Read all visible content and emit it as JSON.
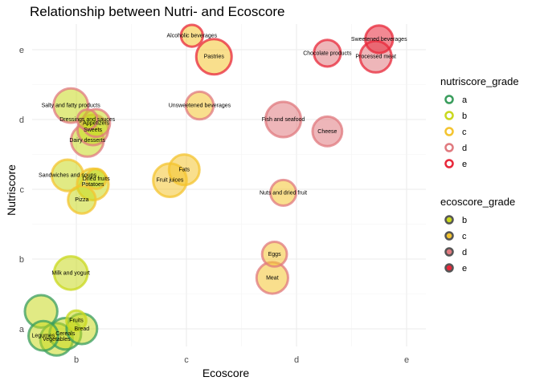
{
  "chart_data": {
    "type": "scatter",
    "title": "Relationship between Nutri- and Ecoscore",
    "xlabel": "Ecoscore",
    "ylabel": "Nutriscore",
    "x_categories": [
      "b",
      "c",
      "d",
      "e"
    ],
    "y_categories": [
      "a",
      "b",
      "c",
      "d",
      "e"
    ],
    "grid": true,
    "legend_position": "right",
    "legends": [
      {
        "title": "nutriscore_grade",
        "entries": [
          {
            "label": "a",
            "color": "#3a9d5d"
          },
          {
            "label": "b",
            "color": "#c9d81f"
          },
          {
            "label": "c",
            "color": "#f4c430"
          },
          {
            "label": "d",
            "color": "#e07a7f"
          },
          {
            "label": "e",
            "color": "#e8283a"
          }
        ]
      },
      {
        "title": "ecoscore_grade",
        "entries": [
          {
            "label": "b",
            "color": "#c9d81f"
          },
          {
            "label": "c",
            "color": "#f4c430"
          },
          {
            "label": "d",
            "color": "#e07a7f"
          },
          {
            "label": "e",
            "color": "#e8283a"
          }
        ]
      }
    ],
    "points": [
      {
        "label": "Alcoholic beverages",
        "x": 2.05,
        "y": 5.2,
        "nutri": "e",
        "eco": "c",
        "size": 0.3
      },
      {
        "label": "Pastries",
        "x": 2.25,
        "y": 4.9,
        "nutri": "e",
        "eco": "c",
        "size": 1.0
      },
      {
        "label": "Chocolate products",
        "x": 3.28,
        "y": 4.95,
        "nutri": "e",
        "eco": "d",
        "size": 0.55
      },
      {
        "label": "Sweetened beverages",
        "x": 3.75,
        "y": 5.15,
        "nutri": "e",
        "eco": "e",
        "size": 0.6
      },
      {
        "label": "Processed meat",
        "x": 3.72,
        "y": 4.9,
        "nutri": "e",
        "eco": "d",
        "size": 0.8
      },
      {
        "label": "Dressings and sauces",
        "x": 1.1,
        "y": 4.0,
        "nutri": "d",
        "eco": "b",
        "size": 0.2
      },
      {
        "label": "Salty and fatty products",
        "x": 0.95,
        "y": 4.2,
        "nutri": "d",
        "eco": "b",
        "size": 0.95
      },
      {
        "label": "Appetizers",
        "x": 1.18,
        "y": 3.95,
        "nutri": "d",
        "eco": "b",
        "size": 0.6
      },
      {
        "label": "Sweets",
        "x": 1.15,
        "y": 3.85,
        "nutri": "d",
        "eco": "b",
        "size": 0.75
      },
      {
        "label": "Dairy desserts",
        "x": 1.1,
        "y": 3.7,
        "nutri": "d",
        "eco": "b",
        "size": 0.85
      },
      {
        "label": "Unsweetened beverages",
        "x": 2.12,
        "y": 4.2,
        "nutri": "d",
        "eco": "c",
        "size": 0.6
      },
      {
        "label": "Fish and seafood",
        "x": 2.88,
        "y": 4.0,
        "nutri": "d",
        "eco": "d",
        "size": 1.0
      },
      {
        "label": "Cheese",
        "x": 3.28,
        "y": 3.83,
        "nutri": "d",
        "eco": "d",
        "size": 0.7
      },
      {
        "label": "Sandwiches and soups",
        "x": 0.92,
        "y": 3.2,
        "nutri": "c",
        "eco": "b",
        "size": 0.8
      },
      {
        "label": "Dried fruits",
        "x": 1.18,
        "y": 3.15,
        "nutri": "c",
        "eco": "b",
        "size": 0.2
      },
      {
        "label": "Potatoes",
        "x": 1.15,
        "y": 3.07,
        "nutri": "c",
        "eco": "b",
        "size": 0.8
      },
      {
        "label": "Pizza",
        "x": 1.05,
        "y": 2.85,
        "nutri": "c",
        "eco": "b",
        "size": 0.6
      },
      {
        "label": "Fats",
        "x": 1.98,
        "y": 3.28,
        "nutri": "c",
        "eco": "c",
        "size": 0.75
      },
      {
        "label": "Fruit juices",
        "x": 1.85,
        "y": 3.13,
        "nutri": "c",
        "eco": "c",
        "size": 0.9
      },
      {
        "label": "Nuts and dried fruit",
        "x": 2.88,
        "y": 2.95,
        "nutri": "d",
        "eco": "c",
        "size": 0.5
      },
      {
        "label": "Eggs",
        "x": 2.8,
        "y": 2.07,
        "nutri": "d",
        "eco": "c",
        "size": 0.45
      },
      {
        "label": "Meat",
        "x": 2.78,
        "y": 1.73,
        "nutri": "d",
        "eco": "c",
        "size": 0.8
      },
      {
        "label": "Milk and yogurt",
        "x": 0.95,
        "y": 1.8,
        "nutri": "b",
        "eco": "b",
        "size": 0.9
      },
      {
        "label": "Fruits",
        "x": 1.0,
        "y": 1.12,
        "nutri": "b",
        "eco": "b",
        "size": 0.2
      },
      {
        "label": "",
        "x": 0.68,
        "y": 1.25,
        "nutri": "a",
        "eco": "b",
        "size": 0.85
      },
      {
        "label": "Bread",
        "x": 1.05,
        "y": 1.0,
        "nutri": "a",
        "eco": "b",
        "size": 0.75
      },
      {
        "label": "Cereals",
        "x": 0.9,
        "y": 0.93,
        "nutri": "a",
        "eco": "b",
        "size": 0.8
      },
      {
        "label": "Legumes",
        "x": 0.7,
        "y": 0.9,
        "nutri": "a",
        "eco": "b",
        "size": 0.7
      },
      {
        "label": "Vegetables",
        "x": 0.82,
        "y": 0.85,
        "nutri": "a",
        "eco": "b",
        "size": 0.85
      }
    ]
  }
}
